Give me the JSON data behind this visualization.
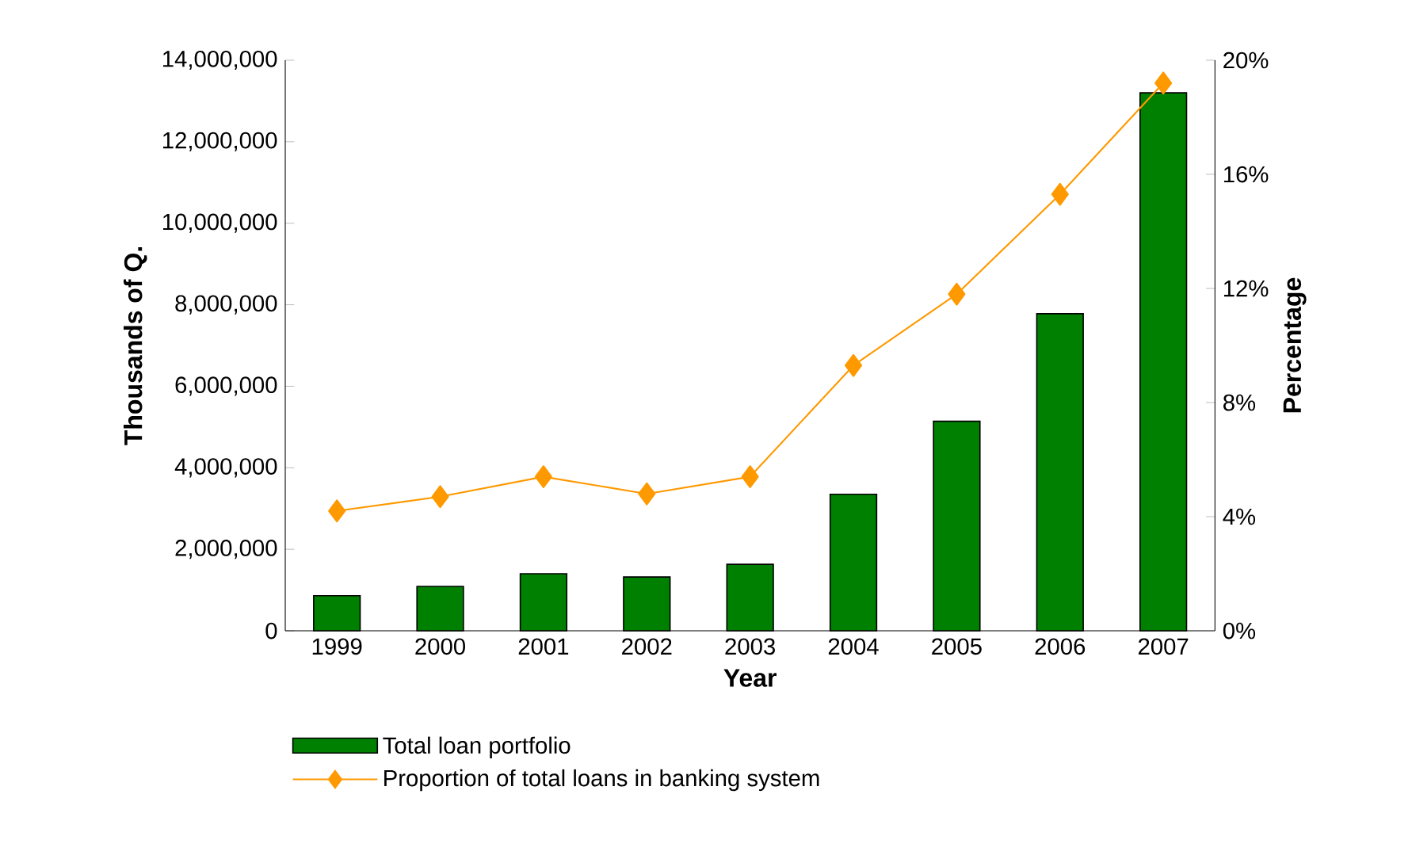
{
  "chart_data": {
    "type": "bar",
    "xlabel": "Year",
    "ylabel": "Thousands of Q.",
    "y2label": "Percentage",
    "categories": [
      "1999",
      "2000",
      "2001",
      "2002",
      "2003",
      "2004",
      "2005",
      "2006",
      "2007"
    ],
    "series": [
      {
        "name": "Total loan portfolio",
        "color": "#008000",
        "values": [
          860000,
          1090000,
          1400000,
          1320000,
          1630000,
          3350000,
          5140000,
          7780000,
          13200000
        ]
      },
      {
        "name": "Proportion of total loans in banking system",
        "type": "line",
        "axis": "y2",
        "color": "#ff9900",
        "values": [
          4.2,
          4.7,
          5.4,
          4.8,
          5.4,
          9.3,
          11.8,
          15.3,
          19.2
        ]
      }
    ],
    "marker": "diamond",
    "ylim": [
      0,
      14000000
    ],
    "yticks": [
      {
        "value": 0,
        "label": "0"
      },
      {
        "value": 2000000,
        "label": "2,000,000"
      },
      {
        "value": 4000000,
        "label": "4,000,000"
      },
      {
        "value": 6000000,
        "label": "6,000,000"
      },
      {
        "value": 8000000,
        "label": "8,000,000"
      },
      {
        "value": 10000000,
        "label": "10,000,000"
      },
      {
        "value": 12000000,
        "label": "12,000,000"
      },
      {
        "value": 14000000,
        "label": "14,000,000"
      }
    ],
    "y2lim": [
      0,
      20
    ],
    "y2ticks": [
      {
        "value": 0,
        "label": "0%"
      },
      {
        "value": 4,
        "label": "4%"
      },
      {
        "value": 8,
        "label": "8%"
      },
      {
        "value": 12,
        "label": "12%"
      },
      {
        "value": 16,
        "label": "16%"
      },
      {
        "value": 20,
        "label": "20%"
      }
    ],
    "legend": "bottom"
  }
}
